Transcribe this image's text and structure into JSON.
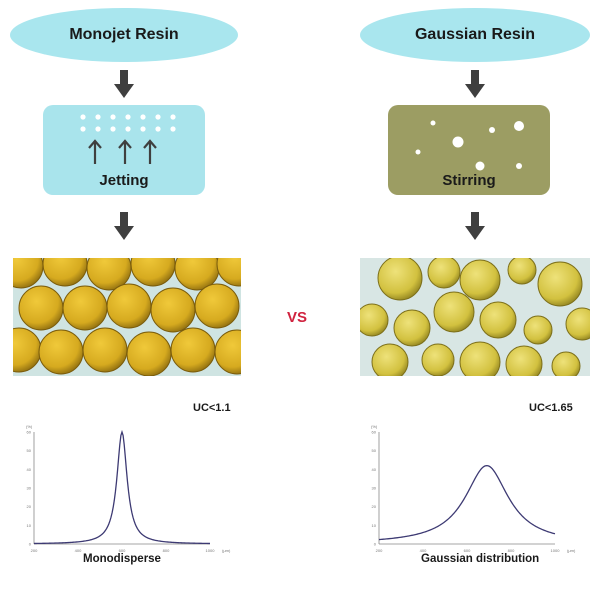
{
  "left": {
    "title": "Monojet Resin",
    "process_label": "Jetting",
    "uc_label": "UC<1.1",
    "chart_caption": "Monodisperse",
    "chart_data": {
      "type": "line",
      "ylabel": "(%)",
      "xlabel": "(μm)",
      "x_ticks": [
        "200",
        "400",
        "600",
        "800",
        "1000"
      ],
      "y_ticks": [
        "0",
        "10",
        "20",
        "30",
        "40",
        "50",
        "60"
      ],
      "xlim": [
        200,
        1000
      ],
      "ylim": [
        0,
        60
      ],
      "peak_x": 600,
      "peak_y": 60,
      "width": 28,
      "series": [
        {
          "values": []
        }
      ]
    }
  },
  "right": {
    "title": "Gaussian Resin",
    "process_label": "Stirring",
    "uc_label": "UC<1.65",
    "chart_caption": "Gaussian distribution",
    "chart_data": {
      "type": "line",
      "ylabel": "(%)",
      "xlabel": "(μm)",
      "x_ticks": [
        "200",
        "400",
        "600",
        "800",
        "1000"
      ],
      "y_ticks": [
        "0",
        "10",
        "20",
        "30",
        "40",
        "50",
        "60"
      ],
      "xlim": [
        200,
        1000
      ],
      "ylim": [
        0,
        60
      ],
      "peak_x": 690,
      "peak_y": 42,
      "width": 120,
      "series": [
        {
          "values": []
        }
      ]
    }
  },
  "vs_label": "VS",
  "colors": {
    "pill": "#a9e6ee",
    "jetting_box": "#a9e4ec",
    "stirring_box": "#9c9d63",
    "vs": "#d0233f",
    "curve": "#3d3a73",
    "bead": "#c9a51e",
    "arrow": "#3f3f3f"
  }
}
